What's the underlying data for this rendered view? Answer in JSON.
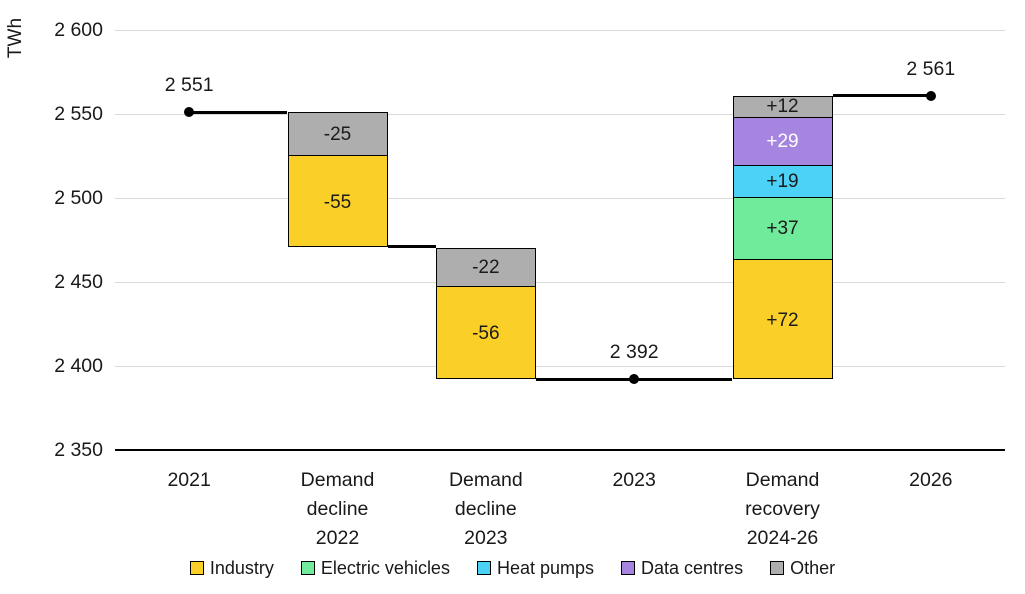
{
  "chart_data": {
    "type": "waterfall",
    "title": "",
    "ylabel": "TWh",
    "ylim": [
      2350,
      2600
    ],
    "grid": true,
    "legend_position": "bottom",
    "yticks": [
      {
        "value": 2600,
        "label": "2 600"
      },
      {
        "value": 2550,
        "label": "2 550"
      },
      {
        "value": 2500,
        "label": "2 500"
      },
      {
        "value": 2450,
        "label": "2 450"
      },
      {
        "value": 2400,
        "label": "2 400"
      },
      {
        "value": 2350,
        "label": "2 350"
      }
    ],
    "categories": [
      "2021",
      "Demand\ndecline\n2022",
      "Demand\ndecline\n2023",
      "2023",
      "Demand\nrecovery\n2024-26",
      "2026"
    ],
    "points": [
      {
        "cat": 0,
        "value": 2551,
        "label": "2 551"
      },
      {
        "cat": 3,
        "value": 2392,
        "label": "2 392"
      },
      {
        "cat": 5,
        "value": 2561,
        "label": "2 561"
      }
    ],
    "bars": [
      {
        "cat": 1,
        "name": "Demand decline 2022",
        "segments": [
          {
            "series": "Other",
            "delta": -25,
            "label": "-25",
            "top": 2551,
            "bottom": 2526
          },
          {
            "series": "Industry",
            "delta": -55,
            "label": "-55",
            "top": 2526,
            "bottom": 2471
          }
        ]
      },
      {
        "cat": 2,
        "name": "Demand decline 2023",
        "segments": [
          {
            "series": "Other",
            "delta": -22,
            "label": "-22",
            "top": 2470,
            "bottom": 2448
          },
          {
            "series": "Industry",
            "delta": -56,
            "label": "-56",
            "top": 2448,
            "bottom": 2392
          }
        ]
      },
      {
        "cat": 4,
        "name": "Demand recovery 2024-26",
        "segments": [
          {
            "series": "Other",
            "delta": 12,
            "label": "+12",
            "top": 2561,
            "bottom": 2549
          },
          {
            "series": "Data centres",
            "delta": 29,
            "label": "+29",
            "top": 2549,
            "bottom": 2520,
            "label_color": "#ffffff"
          },
          {
            "series": "Heat pumps",
            "delta": 19,
            "label": "+19",
            "top": 2520,
            "bottom": 2501
          },
          {
            "series": "Electric vehicles",
            "delta": 37,
            "label": "+37",
            "top": 2501,
            "bottom": 2464
          },
          {
            "series": "Industry",
            "delta": 72,
            "label": "+72",
            "top": 2464,
            "bottom": 2392
          }
        ]
      }
    ],
    "connectors": [
      {
        "value": 2551,
        "from": {
          "cat": 0,
          "anchor": "center"
        },
        "to": {
          "cat": 1,
          "anchor": "left"
        }
      },
      {
        "value": 2471,
        "from": {
          "cat": 1,
          "anchor": "right"
        },
        "to": {
          "cat": 2,
          "anchor": "left"
        }
      },
      {
        "value": 2392,
        "from": {
          "cat": 2,
          "anchor": "right"
        },
        "to": {
          "cat": 4,
          "anchor": "left"
        }
      },
      {
        "value": 2561,
        "from": {
          "cat": 4,
          "anchor": "right"
        },
        "to": {
          "cat": 5,
          "anchor": "center"
        }
      }
    ],
    "legend": [
      {
        "label": "Industry",
        "color": "#FACF28"
      },
      {
        "label": "Electric vehicles",
        "color": "#6FEB9B"
      },
      {
        "label": "Heat pumps",
        "color": "#4CD1F7"
      },
      {
        "label": "Data centres",
        "color": "#A685E1"
      },
      {
        "label": "Other",
        "color": "#AEAEAE"
      }
    ],
    "colors": {
      "grid": "#DADADA",
      "axis": "#000000",
      "text": "#191919",
      "bar_border": "#000000",
      "segment_label": "#1B1B1B"
    }
  }
}
